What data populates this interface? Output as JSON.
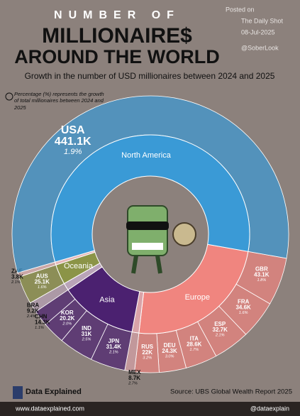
{
  "chart_data": {
    "type": "sunburst",
    "kicker": "NUMBER OF",
    "title": "MILLIONAIRE$",
    "title_line2": "AROUND THE WORLD",
    "subtitle": "Growth in the number of USD millionaires between 2024 and 2025",
    "note": "Percentage (%) represents the growth of total millionaires between 2024 and 2025",
    "watermark": [
      "Posted on",
      "The Daily Shot",
      "08-Jul-2025",
      "@SoberLook"
    ],
    "brand": "Data Explained",
    "source": "Source: UBS Global Wealth Report 2025",
    "website": "www.dataexplained.com",
    "handle": "@dataexplain",
    "regions": [
      {
        "name": "Europe",
        "color": "#f0857f",
        "countries": [
          {
            "name": "GBR",
            "value": 43.1,
            "value_label": "43.1K",
            "growth": 1.8,
            "growth_label": "1.8%"
          },
          {
            "name": "FRA",
            "value": 34.6,
            "value_label": "34.6K",
            "growth": 1.6,
            "growth_label": "1.6%"
          },
          {
            "name": "ESP",
            "value": 32.7,
            "value_label": "32.7K",
            "growth": 2.1,
            "growth_label": "2.1%"
          },
          {
            "name": "ITA",
            "value": 28.6,
            "value_label": "28.6K",
            "growth": 1.7,
            "growth_label": "1.7%"
          },
          {
            "name": "DEU",
            "value": 24.3,
            "value_label": "24.3K",
            "growth": 3,
            "growth_label": "3.0%"
          },
          {
            "name": "RUS",
            "value": 22,
            "value_label": "22K",
            "growth": 3.2,
            "growth_label": "3.2%"
          }
        ]
      },
      {
        "name": null,
        "color": "#d9a3a8",
        "countries": [
          {
            "name": "MEX",
            "value": 8.7,
            "value_label": "8.7K",
            "growth": 2.7,
            "growth_label": "2.7%"
          }
        ]
      },
      {
        "name": "Asia",
        "color": "#4b2170",
        "countries": [
          {
            "name": "JPN",
            "value": 31.4,
            "value_label": "31.4K",
            "growth": 2.1,
            "growth_label": "2.1%"
          },
          {
            "name": "IND",
            "value": 31,
            "value_label": "31K",
            "growth": 2.5,
            "growth_label": "2.5%"
          },
          {
            "name": "KOR",
            "value": 20.2,
            "value_label": "20.2K",
            "growth": 2,
            "growth_label": "2.0%"
          },
          {
            "name": "CHN",
            "value": 14.3,
            "value_label": "14.3K",
            "growth": 1.1,
            "growth_label": "1.1%"
          }
        ]
      },
      {
        "name": null,
        "color": "#b9a4b8",
        "countries": [
          {
            "name": "BRA",
            "value": 9.2,
            "value_label": "9.2K",
            "growth": 2.4,
            "growth_label": "2.4%"
          }
        ]
      },
      {
        "name": "Oceania",
        "color": "#8b9447",
        "countries": [
          {
            "name": "AUS",
            "value": 25.1,
            "value_label": "25.1K",
            "growth": 1.6,
            "growth_label": "1.6%"
          }
        ]
      },
      {
        "name": null,
        "color": "#e6b8b8",
        "countries": [
          {
            "name": "ZAF",
            "value": 3.8,
            "value_label": "3.8K",
            "growth": 2.1,
            "growth_label": "2.1%"
          }
        ]
      },
      {
        "name": "North America",
        "color": "#3a9ad6",
        "countries": [
          {
            "name": "USA",
            "value": 441.1,
            "value_label": "441.1K",
            "growth": 1.9,
            "growth_label": "1.9%"
          }
        ]
      }
    ]
  }
}
